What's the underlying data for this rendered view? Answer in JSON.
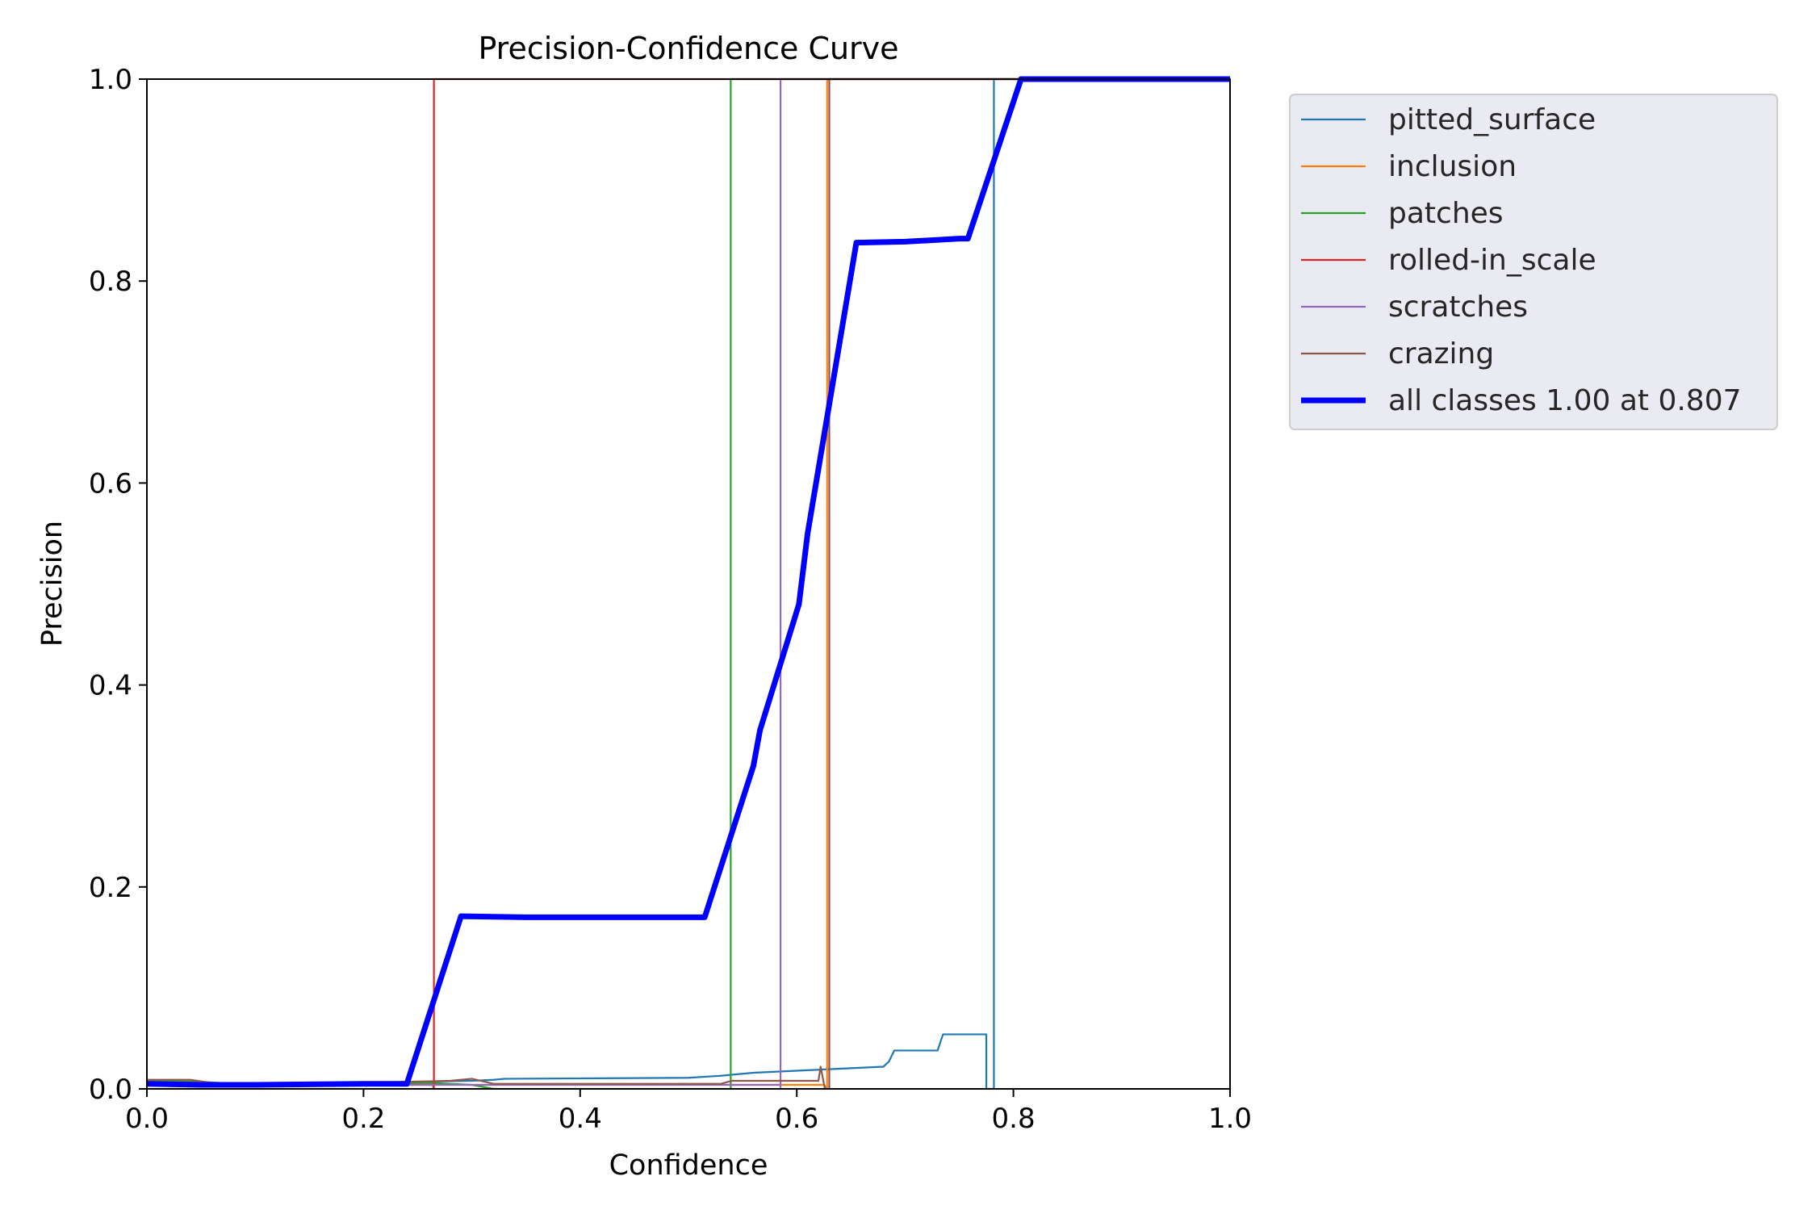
{
  "chart_data": {
    "type": "line",
    "title": "Precision-Confidence Curve",
    "xlabel": "Confidence",
    "ylabel": "Precision",
    "xlim": [
      0.0,
      1.0
    ],
    "ylim": [
      0.0,
      1.0
    ],
    "xticks": [
      "0.0",
      "0.2",
      "0.4",
      "0.6",
      "0.8",
      "1.0"
    ],
    "yticks": [
      "0.0",
      "0.2",
      "0.4",
      "0.6",
      "0.8",
      "1.0"
    ],
    "grid": false,
    "legend_position": "outside-right-top",
    "series": [
      {
        "name": "pitted_surface",
        "color": "#1f77b4",
        "points": [
          [
            0.0,
            0.004
          ],
          [
            0.1,
            0.005
          ],
          [
            0.2,
            0.006
          ],
          [
            0.3,
            0.008
          ],
          [
            0.32,
            0.009
          ],
          [
            0.33,
            0.01
          ],
          [
            0.5,
            0.011
          ],
          [
            0.53,
            0.013
          ],
          [
            0.56,
            0.016
          ],
          [
            0.6,
            0.018
          ],
          [
            0.64,
            0.02
          ],
          [
            0.68,
            0.022
          ],
          [
            0.685,
            0.027
          ],
          [
            0.69,
            0.038
          ],
          [
            0.73,
            0.038
          ],
          [
            0.735,
            0.054
          ],
          [
            0.775,
            0.054
          ],
          [
            0.775,
            0.0
          ],
          [
            0.782,
            0.0
          ],
          [
            0.782,
            1.0
          ],
          [
            1.0,
            1.0
          ]
        ]
      },
      {
        "name": "inclusion",
        "color": "#ff7f0e",
        "points": [
          [
            0.0,
            0.006
          ],
          [
            0.1,
            0.005
          ],
          [
            0.2,
            0.006
          ],
          [
            0.3,
            0.004
          ],
          [
            0.5,
            0.004
          ],
          [
            0.625,
            0.004
          ],
          [
            0.628,
            0.0
          ],
          [
            0.628,
            1.0
          ],
          [
            1.0,
            1.0
          ]
        ]
      },
      {
        "name": "patches",
        "color": "#2ca02c",
        "points": [
          [
            0.0,
            0.008
          ],
          [
            0.05,
            0.007
          ],
          [
            0.1,
            0.004
          ],
          [
            0.2,
            0.004
          ],
          [
            0.26,
            0.006
          ],
          [
            0.3,
            0.004
          ],
          [
            0.32,
            0.0
          ],
          [
            0.539,
            0.0
          ],
          [
            0.539,
            1.0
          ],
          [
            1.0,
            1.0
          ]
        ]
      },
      {
        "name": "rolled-in_scale",
        "color": "#d62728",
        "points": [
          [
            0.0,
            0.006
          ],
          [
            0.1,
            0.004
          ],
          [
            0.2,
            0.004
          ],
          [
            0.264,
            0.004
          ],
          [
            0.265,
            0.0
          ],
          [
            0.265,
            1.0
          ],
          [
            1.0,
            1.0
          ]
        ]
      },
      {
        "name": "scratches",
        "color": "#9467bd",
        "points": [
          [
            0.0,
            0.004
          ],
          [
            0.585,
            0.004
          ],
          [
            0.585,
            0.0
          ],
          [
            0.585,
            1.0
          ],
          [
            1.0,
            1.0
          ]
        ]
      },
      {
        "name": "crazing",
        "color": "#8c564b",
        "points": [
          [
            0.0,
            0.009
          ],
          [
            0.04,
            0.009
          ],
          [
            0.06,
            0.006
          ],
          [
            0.1,
            0.005
          ],
          [
            0.2,
            0.006
          ],
          [
            0.28,
            0.008
          ],
          [
            0.3,
            0.01
          ],
          [
            0.32,
            0.005
          ],
          [
            0.4,
            0.005
          ],
          [
            0.5,
            0.005
          ],
          [
            0.53,
            0.005
          ],
          [
            0.54,
            0.008
          ],
          [
            0.6,
            0.008
          ],
          [
            0.62,
            0.008
          ],
          [
            0.622,
            0.022
          ],
          [
            0.626,
            0.0
          ],
          [
            0.63,
            0.0
          ],
          [
            0.63,
            1.0
          ],
          [
            1.0,
            1.0
          ]
        ]
      },
      {
        "name": "all classes 1.00 at 0.807",
        "color": "#0000ff",
        "bold": true,
        "points": [
          [
            0.0,
            0.005
          ],
          [
            0.05,
            0.004
          ],
          [
            0.1,
            0.004
          ],
          [
            0.2,
            0.005
          ],
          [
            0.24,
            0.005
          ],
          [
            0.29,
            0.171
          ],
          [
            0.35,
            0.17
          ],
          [
            0.45,
            0.17
          ],
          [
            0.515,
            0.17
          ],
          [
            0.56,
            0.32
          ],
          [
            0.566,
            0.355
          ],
          [
            0.602,
            0.48
          ],
          [
            0.61,
            0.55
          ],
          [
            0.655,
            0.838
          ],
          [
            0.7,
            0.839
          ],
          [
            0.75,
            0.842
          ],
          [
            0.758,
            0.842
          ],
          [
            0.807,
            1.0
          ],
          [
            1.0,
            1.0
          ]
        ]
      }
    ]
  }
}
